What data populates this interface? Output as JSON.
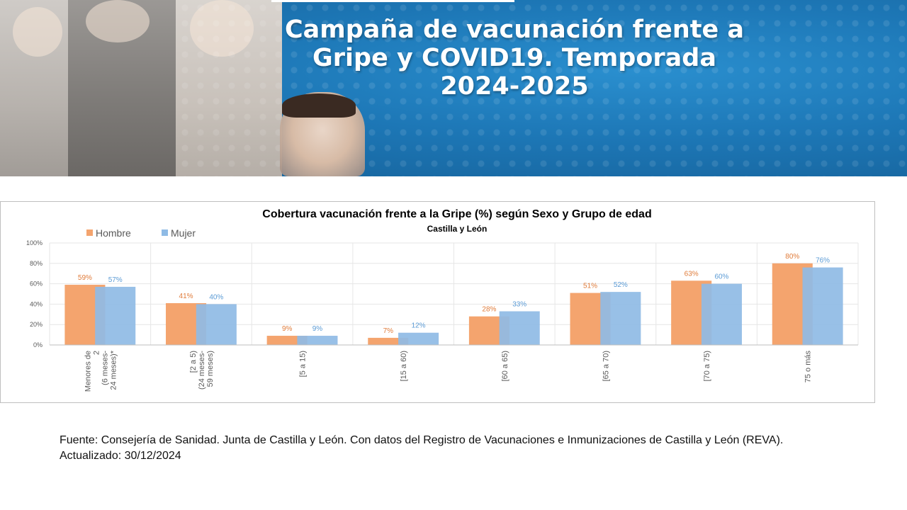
{
  "banner": {
    "title_lines": [
      "Campaña de vacunación frente a",
      "Gripe y COVID19. Temporada",
      "2024-2025"
    ]
  },
  "chart_data": {
    "type": "bar",
    "title": "Cobertura vacunación frente a la Gripe (%) según Sexo y Grupo de edad",
    "subtitle": "Castilla y León",
    "categories": [
      [
        "Menores de",
        "2",
        "(6 meses-",
        "24 meses)*"
      ],
      [
        "[2 a 5)",
        "(24 meses-",
        "59 meses)"
      ],
      [
        "[5 a 15)"
      ],
      [
        "[15 a 60)"
      ],
      [
        "[60 a 65)"
      ],
      [
        "[65 a 70)"
      ],
      [
        "[70 a 75)"
      ],
      [
        "75 o más"
      ]
    ],
    "series": [
      {
        "name": "Hombre",
        "color": "#f4a46e",
        "label_color": "#e07b39",
        "values": [
          59,
          41,
          9,
          7,
          28,
          51,
          63,
          80
        ],
        "labels": [
          "59%",
          "41%",
          "9%",
          "7%",
          "28%",
          "51%",
          "63%",
          "80%"
        ]
      },
      {
        "name": "Mujer",
        "color": "#8fbbe5",
        "label_color": "#5b9bd5",
        "values": [
          57,
          40,
          9,
          12,
          33,
          52,
          60,
          76
        ],
        "labels": [
          "57%",
          "40%",
          "9%",
          "12%",
          "33%",
          "52%",
          "60%",
          "76%"
        ]
      }
    ],
    "yticks": [
      "0%",
      "20%",
      "40%",
      "60%",
      "80%",
      "100%"
    ],
    "ylim": [
      0,
      100
    ],
    "grid": true,
    "legend_position": "top-left"
  },
  "source": {
    "line1": "Fuente: Consejería de Sanidad. Junta de Castilla y León. Con datos del Registro de Vacunaciones e Inmunizaciones  de Castilla y León (REVA).",
    "line2": "Actualizado: 30/12/2024"
  }
}
